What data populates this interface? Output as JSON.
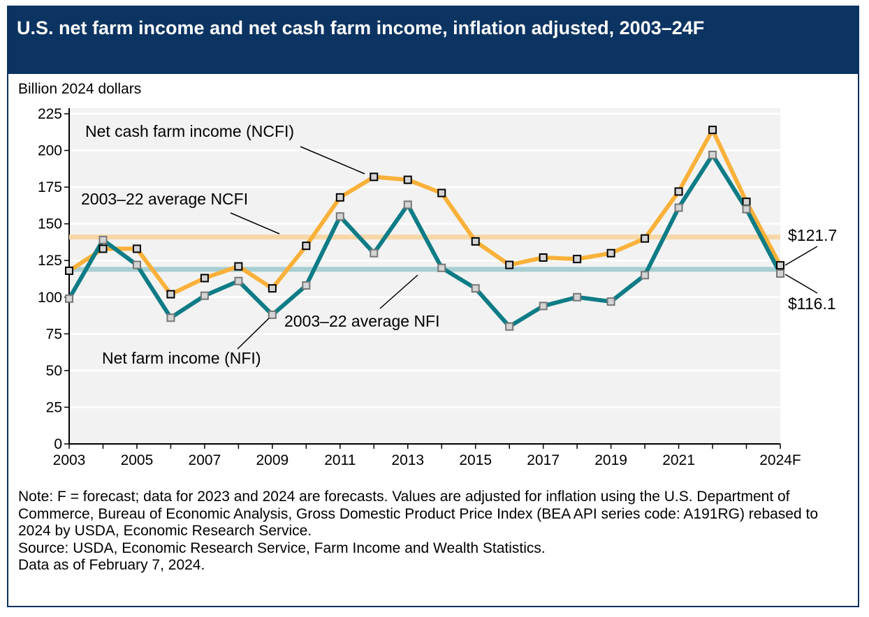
{
  "chart_data": {
    "type": "line",
    "title": "U.S. net farm income and net cash farm income, inflation adjusted, 2003–24F",
    "ylabel": "Billion 2024 dollars",
    "xlabel": "",
    "ylim": [
      0,
      225
    ],
    "yticks": [
      0,
      25,
      50,
      75,
      100,
      125,
      150,
      175,
      200,
      225
    ],
    "x": [
      2003,
      2004,
      2005,
      2006,
      2007,
      2008,
      2009,
      2010,
      2011,
      2012,
      2013,
      2014,
      2015,
      2016,
      2017,
      2018,
      2019,
      2020,
      2021,
      2022,
      2023,
      2024
    ],
    "xtick_labels": [
      {
        "x": 2003,
        "label": "2003"
      },
      {
        "x": 2005,
        "label": "2005"
      },
      {
        "x": 2007,
        "label": "2007"
      },
      {
        "x": 2009,
        "label": "2009"
      },
      {
        "x": 2011,
        "label": "2011"
      },
      {
        "x": 2013,
        "label": "2013"
      },
      {
        "x": 2015,
        "label": "2015"
      },
      {
        "x": 2017,
        "label": "2017"
      },
      {
        "x": 2019,
        "label": "2019"
      },
      {
        "x": 2021,
        "label": "2021"
      },
      {
        "x": 2024,
        "label": "2024F"
      }
    ],
    "grid": true,
    "series": [
      {
        "name": "Net cash farm income (NCFI)",
        "color": "#f9b13a",
        "values": [
          118,
          133,
          133,
          102,
          113,
          121,
          106,
          135,
          168,
          182,
          180,
          171,
          138,
          122,
          127,
          126,
          130,
          140,
          172,
          214,
          165,
          121.7
        ]
      },
      {
        "name": "Net farm income (NFI)",
        "color": "#0e7c86",
        "values": [
          99,
          139,
          122,
          86,
          101,
          111,
          88,
          108,
          155,
          130,
          163,
          120,
          106,
          80,
          94,
          100,
          97,
          115,
          161,
          197,
          160,
          116.1
        ]
      }
    ],
    "reference_lines": [
      {
        "name": "2003–22 average NCFI",
        "value": 141,
        "color": "#f8d7a6"
      },
      {
        "name": "2003–22 average NFI",
        "value": 119,
        "color": "#a7cfd2"
      }
    ],
    "annotations": [
      {
        "text": "$121.7"
      },
      {
        "text": "$116.1"
      }
    ]
  },
  "notes": [
    "Note: F = forecast; data for 2023 and 2024 are forecasts. Values are adjusted for inflation using the U.S. Department of Commerce, Bureau of Economic Analysis, Gross Domestic Product Price Index (BEA API series code: A191RG) rebased to 2024 by USDA, Economic Research Service.",
    "Source: USDA, Economic Research Service, Farm Income and Wealth Statistics.",
    "Data as of February 7, 2024."
  ]
}
